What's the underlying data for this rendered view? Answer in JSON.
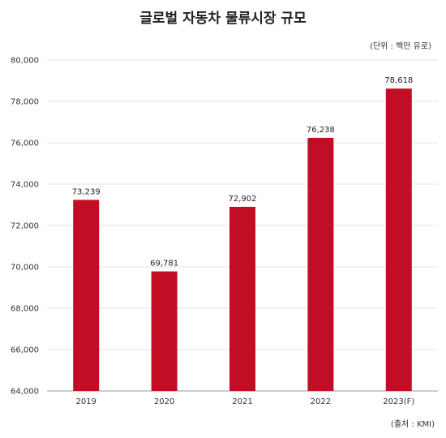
{
  "chart_data": {
    "type": "bar",
    "title": "글로벌 자동차 물류시장 규모",
    "unit_note": "(단위 : 백만 유로)",
    "source_note": "(출처 : KMI)",
    "categories": [
      "2019",
      "2020",
      "2021",
      "2022",
      "2023(F)"
    ],
    "values": [
      73239,
      69781,
      72902,
      76238,
      78618
    ],
    "value_labels": [
      "73,239",
      "69,781",
      "72,902",
      "76,238",
      "78,618"
    ],
    "ylim": [
      64000,
      80000
    ],
    "yticks": [
      64000,
      66000,
      68000,
      70000,
      72000,
      74000,
      76000,
      78000,
      80000
    ],
    "ytick_labels": [
      "64,000",
      "66,000",
      "68,000",
      "70,000",
      "72,000",
      "74,000",
      "76,000",
      "78,000",
      "80,000"
    ],
    "grid": true,
    "bar_color": "#c20e25",
    "grid_color": "#e3e3e3"
  }
}
